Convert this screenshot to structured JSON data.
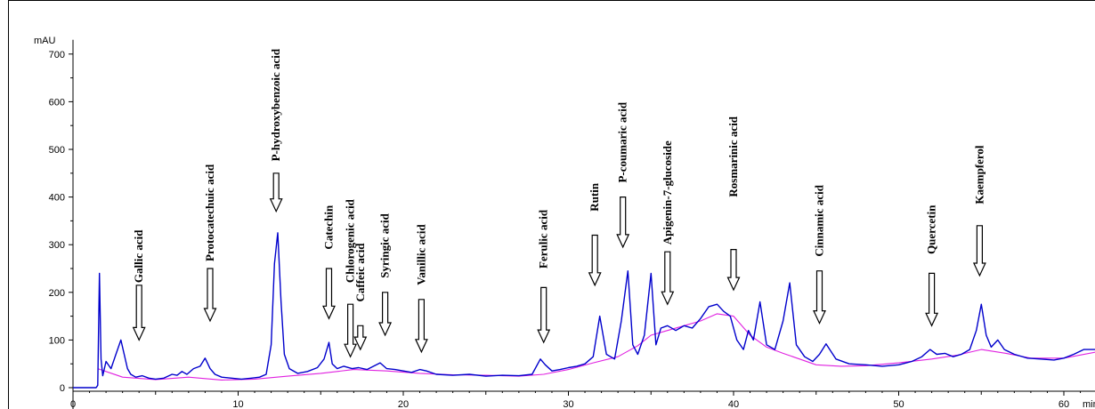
{
  "chart_data": {
    "type": "line",
    "title": "",
    "ylabel": "mAU",
    "xlabel": "min",
    "xlim": [
      0,
      62
    ],
    "ylim": [
      -10,
      730
    ],
    "x_ticks": [
      0,
      10,
      20,
      30,
      40,
      50,
      60
    ],
    "y_ticks": [
      0,
      100,
      200,
      300,
      400,
      500,
      600,
      700
    ],
    "grid": false,
    "colors": {
      "signal": "#0000cc",
      "baseline": "#e020e0",
      "axis": "#000000"
    },
    "series": [
      {
        "name": "",
        "x": [
          0.0,
          1.4,
          1.5,
          1.6,
          1.7,
          1.8,
          2.0,
          2.3,
          2.6,
          2.9,
          3.1,
          3.3,
          3.5,
          3.8,
          4.2,
          4.6,
          5.0,
          5.5,
          6.0,
          6.3,
          6.6,
          6.9,
          7.3,
          7.7,
          8.0,
          8.3,
          8.6,
          9.0,
          9.6,
          10.2,
          10.8,
          11.3,
          11.7,
          12.0,
          12.2,
          12.4,
          12.6,
          12.8,
          13.1,
          13.6,
          14.2,
          14.8,
          15.2,
          15.5,
          15.7,
          16.0,
          16.4,
          16.9,
          17.3,
          17.8,
          18.2,
          18.6,
          19.0,
          19.5,
          20.0,
          20.5,
          21.0,
          21.4,
          22.0,
          23.0,
          24.0,
          25.0,
          26.0,
          27.0,
          27.8,
          28.3,
          28.6,
          29.0,
          29.5,
          30.0,
          30.5,
          31.0,
          31.5,
          31.9,
          32.3,
          32.8,
          33.2,
          33.6,
          33.9,
          34.2,
          34.6,
          35.0,
          35.3,
          35.6,
          36.0,
          36.5,
          37.0,
          37.5,
          38.0,
          38.5,
          39.0,
          39.4,
          39.8,
          40.2,
          40.6,
          40.9,
          41.2,
          41.6,
          42.0,
          42.5,
          43.0,
          43.4,
          43.8,
          44.3,
          44.8,
          45.2,
          45.6,
          46.2,
          47.0,
          48.0,
          49.0,
          50.0,
          50.8,
          51.4,
          51.9,
          52.3,
          52.8,
          53.3,
          53.8,
          54.3,
          54.7,
          55.0,
          55.3,
          55.6,
          56.0,
          56.4,
          57.0,
          57.8,
          58.6,
          59.4,
          60.0,
          60.6,
          61.2,
          62.0
        ],
        "y": [
          0,
          0,
          5,
          240,
          60,
          25,
          55,
          40,
          70,
          100,
          70,
          40,
          28,
          22,
          25,
          20,
          18,
          20,
          28,
          26,
          34,
          28,
          40,
          45,
          62,
          40,
          28,
          22,
          20,
          18,
          20,
          22,
          28,
          90,
          260,
          325,
          180,
          70,
          40,
          30,
          34,
          42,
          60,
          95,
          50,
          40,
          45,
          40,
          42,
          38,
          45,
          52,
          40,
          38,
          35,
          32,
          38,
          35,
          28,
          26,
          28,
          24,
          26,
          25,
          28,
          60,
          48,
          35,
          38,
          42,
          45,
          50,
          65,
          150,
          70,
          60,
          140,
          245,
          90,
          70,
          110,
          240,
          90,
          125,
          130,
          120,
          130,
          125,
          145,
          170,
          175,
          160,
          150,
          100,
          80,
          120,
          100,
          180,
          90,
          80,
          140,
          220,
          90,
          65,
          55,
          70,
          92,
          60,
          50,
          48,
          45,
          48,
          55,
          65,
          80,
          70,
          72,
          65,
          70,
          80,
          120,
          175,
          110,
          85,
          100,
          80,
          70,
          62,
          60,
          58,
          62,
          70,
          80,
          80
        ]
      },
      {
        "name": "",
        "x": [
          1.5,
          3.0,
          5.0,
          7.0,
          9.0,
          11.0,
          13.0,
          15.0,
          17.0,
          19.0,
          21.0,
          23.0,
          25.0,
          27.0,
          28.5,
          30.0,
          31.5,
          33.0,
          34.2,
          35.0,
          36.0,
          37.0,
          38.0,
          39.0,
          40.0,
          41.0,
          42.0,
          43.0,
          44.0,
          45.0,
          46.5,
          48.0,
          50.0,
          52.0,
          53.5,
          55.0,
          56.5,
          58.0,
          60.0,
          62.0
        ],
        "y": [
          40,
          22,
          17,
          22,
          16,
          18,
          24,
          30,
          38,
          35,
          30,
          27,
          26,
          24,
          28,
          38,
          52,
          65,
          88,
          110,
          120,
          130,
          140,
          155,
          150,
          110,
          85,
          72,
          60,
          48,
          45,
          46,
          52,
          60,
          68,
          80,
          72,
          62,
          62,
          75
        ]
      }
    ],
    "annotations": [
      {
        "label": "Gallic acid",
        "x": 4.0,
        "arrow_y": [
          215,
          100
        ],
        "text_y": 220
      },
      {
        "label": "Protocatechuic acid",
        "x": 8.3,
        "arrow_y": [
          250,
          140
        ],
        "text_y": 265
      },
      {
        "label": "P-hydroxybenzoic acid",
        "x": 12.3,
        "arrow_y": [
          450,
          370
        ],
        "text_y": 475
      },
      {
        "label": "Catechin",
        "x": 15.5,
        "arrow_y": [
          250,
          145
        ],
        "text_y": 290
      },
      {
        "label": "Chlorogenic acid",
        "x": 16.8,
        "arrow_y": [
          175,
          65
        ],
        "text_y": 220
      },
      {
        "label": "Caffeic acid",
        "x": 17.4,
        "arrow_y": [
          130,
          80
        ],
        "text_y": 180
      },
      {
        "label": "Syringic acid",
        "x": 18.9,
        "arrow_y": [
          200,
          110
        ],
        "text_y": 230
      },
      {
        "label": "Vanillic acid",
        "x": 21.1,
        "arrow_y": [
          185,
          75
        ],
        "text_y": 215
      },
      {
        "label": "Ferulic acid",
        "x": 28.5,
        "arrow_y": [
          210,
          95
        ],
        "text_y": 250
      },
      {
        "label": "Rutin",
        "x": 31.6,
        "arrow_y": [
          320,
          215
        ],
        "text_y": 370
      },
      {
        "label": "P-coumaric acid",
        "x": 33.3,
        "arrow_y": [
          400,
          295
        ],
        "text_y": 430
      },
      {
        "label": "Apigenin-7-glucoside",
        "x": 36.0,
        "arrow_y": [
          285,
          175
        ],
        "text_y": 300
      },
      {
        "label": "Rosmarinic acid",
        "x": 40.0,
        "arrow_y": [
          290,
          205
        ],
        "text_y": 400
      },
      {
        "label": "Cinnamic acid",
        "x": 45.2,
        "arrow_y": [
          245,
          135
        ],
        "text_y": 275
      },
      {
        "label": "Quercetin",
        "x": 52.0,
        "arrow_y": [
          240,
          130
        ],
        "text_y": 280
      },
      {
        "label": "Kaempferol",
        "x": 54.9,
        "arrow_y": [
          340,
          235
        ],
        "text_y": 385
      }
    ]
  }
}
